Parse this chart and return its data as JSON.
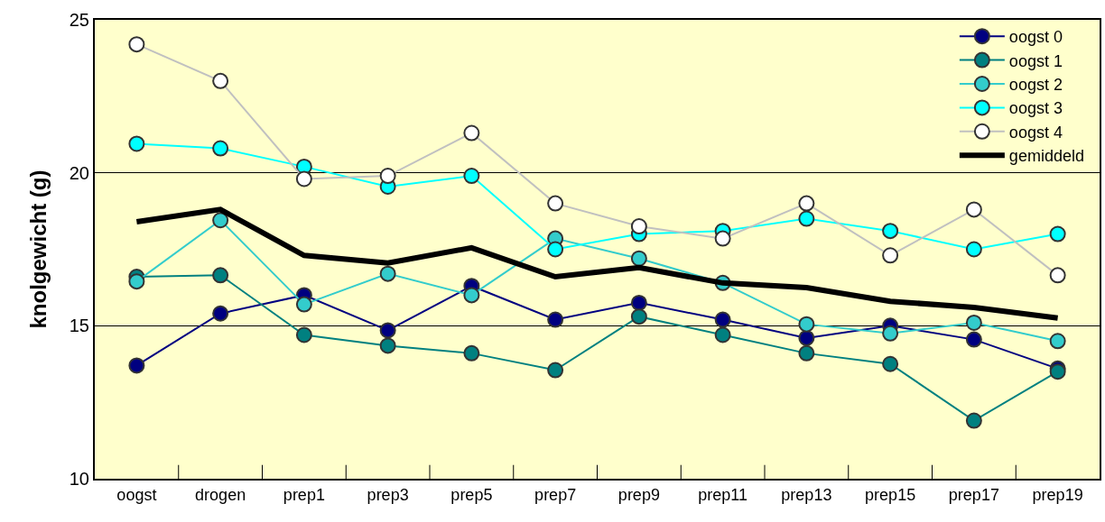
{
  "chart_data": {
    "type": "line",
    "ylabel": "knolgewicht (g)",
    "categories": [
      "oogst",
      "drogen",
      "prep1",
      "prep3",
      "prep5",
      "prep7",
      "prep9",
      "prep11",
      "prep13",
      "prep15",
      "prep17",
      "prep19"
    ],
    "series": [
      {
        "name": "oogst 0",
        "color": "#000080",
        "values": [
          13.7,
          15.4,
          16.0,
          14.85,
          16.3,
          15.2,
          15.75,
          15.2,
          14.6,
          15.0,
          14.55,
          13.6
        ]
      },
      {
        "name": "oogst 1",
        "color": "#008080",
        "values": [
          16.6,
          16.65,
          14.7,
          14.35,
          14.1,
          13.55,
          15.3,
          14.7,
          14.1,
          13.75,
          11.9,
          13.5
        ]
      },
      {
        "name": "oogst 2",
        "color": "#33cccc",
        "values": [
          16.45,
          18.45,
          15.7,
          16.7,
          16.0,
          17.85,
          17.2,
          16.4,
          15.05,
          14.75,
          15.1,
          14.5
        ]
      },
      {
        "name": "oogst 3",
        "color": "#00ffff",
        "values": [
          20.95,
          20.8,
          20.2,
          19.55,
          19.9,
          17.5,
          18.0,
          18.1,
          18.5,
          18.1,
          17.5,
          18.0
        ]
      },
      {
        "name": "oogst 4",
        "color": "#ffffff",
        "values": [
          24.2,
          23.0,
          19.8,
          19.9,
          21.3,
          19.0,
          18.25,
          17.85,
          19.0,
          17.3,
          18.8,
          16.65
        ]
      },
      {
        "name": "gemiddeld",
        "color": "#000000",
        "marker": "none",
        "values": [
          18.4,
          18.8,
          17.3,
          17.05,
          17.55,
          16.6,
          16.9,
          16.4,
          16.25,
          15.8,
          15.6,
          15.25
        ]
      }
    ],
    "ylim": [
      10,
      25
    ],
    "yticks": [
      10,
      15,
      20,
      25
    ],
    "grid": "y",
    "legend": "top right",
    "marker": "circle"
  }
}
